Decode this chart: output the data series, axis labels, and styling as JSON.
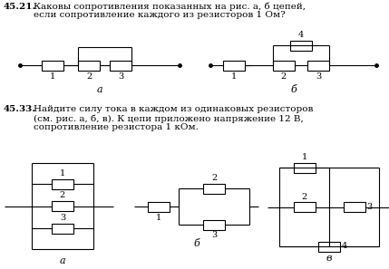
{
  "title1_num": "45.21.",
  "title1_text": "Каковы сопротивления показанных на рис. а, б цепей,",
  "title1_text2": "если сопротивление каждого из резисторов 1 Ом?",
  "title2_num": "45.33.",
  "title2_text": "Найдите силу тока в каждом из одинаковых резисторов",
  "title2_text2": "(см. рис. а, б, в). К цепи приложено напряжение 12 В,",
  "title2_text3": "сопротивление резистора 1 кОм.",
  "label_a": "а",
  "label_b": "б",
  "label_v": "в",
  "bg_color": "#ffffff",
  "text_color": "#000000",
  "line_color": "#000000",
  "resistor_fill": "#ffffff",
  "resistor_edge": "#000000",
  "title1_num_bold_parts": [
    "45.21"
  ],
  "title2_num_bold_parts": [
    "45.33"
  ]
}
